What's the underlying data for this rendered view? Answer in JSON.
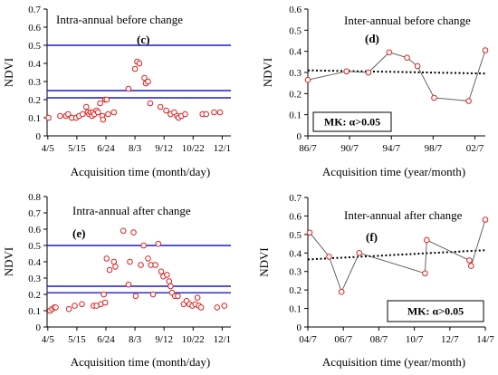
{
  "chart_data": [
    {
      "type": "scatter",
      "title": "Intra-annual before change",
      "panel_label": "(c)",
      "xlabel": "Acquisition time (month/day)",
      "ylabel": "NDVI",
      "ylim": [
        0,
        0.7
      ],
      "yticks": [
        "0",
        "0.1",
        "0.2",
        "0.3",
        "0.4",
        "0.5",
        "0.6",
        "0.7"
      ],
      "xlim": [
        94,
        347
      ],
      "xtick_values": [
        95,
        135,
        175,
        215,
        255,
        295,
        335
      ],
      "xtick_labels": [
        "4/5",
        "5/15",
        "6/24",
        "8/3",
        "9/12",
        "10/22",
        "12/1"
      ],
      "hlines": [
        0.5,
        0.25,
        0.21
      ],
      "marker_color": "#e02020",
      "line_color": "#1c1ccc",
      "series": [
        {
          "points": [
            [
              96,
              0.1
            ],
            [
              112,
              0.11
            ],
            [
              120,
              0.11
            ],
            [
              123,
              0.12
            ],
            [
              128,
              0.1
            ],
            [
              134,
              0.1
            ],
            [
              138,
              0.11
            ],
            [
              143,
              0.12
            ],
            [
              148,
              0.16
            ],
            [
              150,
              0.13
            ],
            [
              152,
              0.12
            ],
            [
              154,
              0.13
            ],
            [
              156,
              0.11
            ],
            [
              157,
              0.13
            ],
            [
              159,
              0.12
            ],
            [
              162,
              0.14
            ],
            [
              164,
              0.13
            ],
            [
              167,
              0.18
            ],
            [
              170,
              0.11
            ],
            [
              171,
              0.09
            ],
            [
              174,
              0.2
            ],
            [
              176,
              0.2
            ],
            [
              178,
              0.12
            ],
            [
              186,
              0.13
            ],
            [
              206,
              0.26
            ],
            [
              215,
              0.37
            ],
            [
              218,
              0.41
            ],
            [
              221,
              0.4
            ],
            [
              228,
              0.32
            ],
            [
              230,
              0.29
            ],
            [
              233,
              0.3
            ],
            [
              236,
              0.18
            ],
            [
              250,
              0.16
            ],
            [
              258,
              0.14
            ],
            [
              264,
              0.12
            ],
            [
              269,
              0.13
            ],
            [
              273,
              0.11
            ],
            [
              275,
              0.1
            ],
            [
              279,
              0.11
            ],
            [
              284,
              0.12
            ],
            [
              308,
              0.12
            ],
            [
              313,
              0.12
            ],
            [
              324,
              0.13
            ],
            [
              332,
              0.13
            ]
          ]
        }
      ]
    },
    {
      "type": "line",
      "title": "Inter-annual before change",
      "panel_label": "(d)",
      "xlabel": "Acquisition time (year/month)",
      "ylabel": "NDVI",
      "ylim": [
        0,
        0.6
      ],
      "yticks": [
        "0",
        "0.1",
        "0.2",
        "0.3",
        "0.4",
        "0.5",
        "0.6"
      ],
      "xlim": [
        1986.5,
        2003.5
      ],
      "xtick_values": [
        1986.5,
        1990.5,
        1994.5,
        1998.5,
        2002.5
      ],
      "xtick_labels": [
        "86/7",
        "90/7",
        "94/7",
        "98/7",
        "02/7"
      ],
      "annotation": "MK: α>0.05",
      "marker_color": "#e02020",
      "series": [
        {
          "points": [
            [
              1986.5,
              0.265
            ],
            [
              1990.2,
              0.305
            ],
            [
              1992.3,
              0.3
            ],
            [
              1994.3,
              0.395
            ],
            [
              1996.0,
              0.37
            ],
            [
              1997.0,
              0.33
            ],
            [
              1998.6,
              0.18
            ],
            [
              2001.9,
              0.165
            ],
            [
              2003.5,
              0.405
            ]
          ]
        }
      ],
      "trend": [
        [
          1986.5,
          0.31
        ],
        [
          2003.5,
          0.295
        ]
      ]
    },
    {
      "type": "scatter",
      "title": "Intra-annual after change",
      "panel_label": "(e)",
      "xlabel": "Acquisition time (month/day)",
      "ylabel": "NDVI",
      "ylim": [
        0,
        0.8
      ],
      "yticks": [
        "0",
        "0.1",
        "0.2",
        "0.3",
        "0.4",
        "0.5",
        "0.6",
        "0.7",
        "0.8"
      ],
      "xlim": [
        94,
        347
      ],
      "xtick_values": [
        95,
        135,
        175,
        215,
        255,
        295,
        335
      ],
      "xtick_labels": [
        "4/5",
        "5/15",
        "6/24",
        "8/3",
        "9/12",
        "10/22",
        "12/1"
      ],
      "hlines": [
        0.5,
        0.25,
        0.21
      ],
      "marker_color": "#e02020",
      "line_color": "#1c1ccc",
      "series": [
        {
          "points": [
            [
              98,
              0.1
            ],
            [
              101,
              0.11
            ],
            [
              104,
              0.12
            ],
            [
              106,
              0.12
            ],
            [
              124,
              0.11
            ],
            [
              132,
              0.13
            ],
            [
              142,
              0.14
            ],
            [
              158,
              0.13
            ],
            [
              162,
              0.13
            ],
            [
              168,
              0.14
            ],
            [
              172,
              0.2
            ],
            [
              174,
              0.15
            ],
            [
              176,
              0.42
            ],
            [
              180,
              0.35
            ],
            [
              186,
              0.4
            ],
            [
              188,
              0.37
            ],
            [
              199,
              0.59
            ],
            [
              206,
              0.26
            ],
            [
              208,
              0.4
            ],
            [
              213,
              0.58
            ],
            [
              216,
              0.19
            ],
            [
              223,
              0.38
            ],
            [
              227,
              0.5
            ],
            [
              233,
              0.42
            ],
            [
              237,
              0.38
            ],
            [
              240,
              0.2
            ],
            [
              243,
              0.38
            ],
            [
              247,
              0.51
            ],
            [
              251,
              0.34
            ],
            [
              254,
              0.31
            ],
            [
              259,
              0.32
            ],
            [
              262,
              0.28
            ],
            [
              264,
              0.25
            ],
            [
              266,
              0.21
            ],
            [
              270,
              0.19
            ],
            [
              274,
              0.19
            ],
            [
              282,
              0.14
            ],
            [
              286,
              0.16
            ],
            [
              290,
              0.14
            ],
            [
              294,
              0.13
            ],
            [
              298,
              0.14
            ],
            [
              301,
              0.18
            ],
            [
              303,
              0.13
            ],
            [
              306,
              0.12
            ],
            [
              328,
              0.12
            ],
            [
              338,
              0.13
            ]
          ]
        }
      ]
    },
    {
      "type": "line",
      "title": "Inter-annual after change",
      "panel_label": "(f)",
      "xlabel": "Acquisition time (year/month)",
      "ylabel": "NDVI",
      "ylim": [
        0,
        0.7
      ],
      "yticks": [
        "0",
        "0.1",
        "0.2",
        "0.3",
        "0.4",
        "0.5",
        "0.6",
        "0.7"
      ],
      "xlim": [
        2004.5,
        2014.5
      ],
      "xtick_values": [
        2004.5,
        2006.5,
        2008.5,
        2010.5,
        2012.5,
        2014.5
      ],
      "xtick_labels": [
        "04/7",
        "06/7",
        "08/7",
        "10/7",
        "12/7",
        "14/7"
      ],
      "annotation": "MK: α>0.05",
      "marker_color": "#e02020",
      "series": [
        {
          "points": [
            [
              2004.6,
              0.51
            ],
            [
              2005.7,
              0.38
            ],
            [
              2006.4,
              0.19
            ],
            [
              2007.4,
              0.4
            ],
            [
              2011.1,
              0.29
            ],
            [
              2011.2,
              0.47
            ],
            [
              2013.6,
              0.36
            ],
            [
              2013.7,
              0.33
            ],
            [
              2014.5,
              0.58
            ]
          ]
        }
      ],
      "trend": [
        [
          2004.5,
          0.365
        ],
        [
          2014.5,
          0.415
        ]
      ]
    }
  ]
}
